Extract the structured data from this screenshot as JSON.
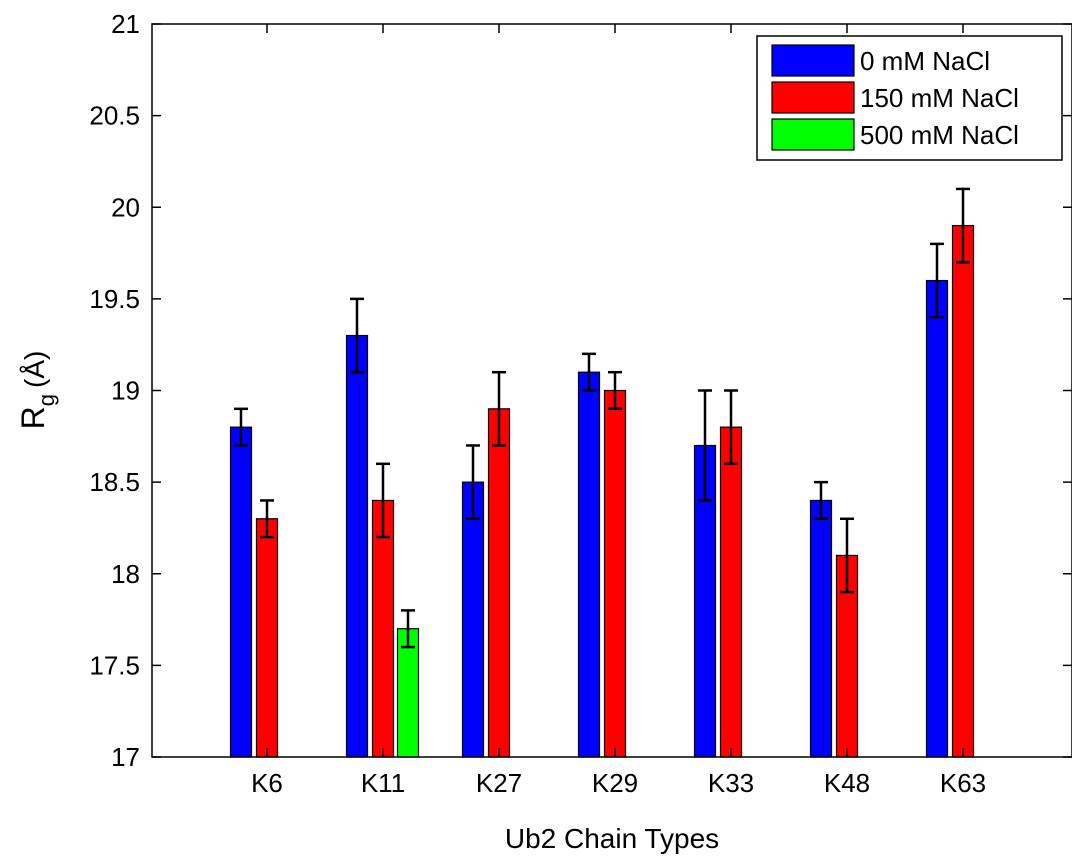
{
  "chart_data": {
    "type": "bar",
    "categories": [
      "K6",
      "K11",
      "K27",
      "K29",
      "K33",
      "K48",
      "K63"
    ],
    "series": [
      {
        "name": "0 mM NaCl",
        "color": "#0000ff",
        "values": [
          18.8,
          19.3,
          18.5,
          19.1,
          18.7,
          18.4,
          19.6
        ],
        "errors": [
          0.1,
          0.2,
          0.2,
          0.1,
          0.3,
          0.1,
          0.2
        ]
      },
      {
        "name": "150 mM NaCl",
        "color": "#ff0000",
        "values": [
          18.3,
          18.4,
          18.9,
          19.0,
          18.8,
          18.1,
          19.9
        ],
        "errors": [
          0.1,
          0.2,
          0.2,
          0.1,
          0.2,
          0.2,
          0.2
        ]
      },
      {
        "name": "500 mM NaCl",
        "color": "#00ff00",
        "values": [
          null,
          17.7,
          null,
          null,
          null,
          null,
          null
        ],
        "errors": [
          null,
          0.1,
          null,
          null,
          null,
          null,
          null
        ]
      }
    ],
    "xlabel": "Ub2 Chain Types",
    "ylabel_main": "R",
    "ylabel_sub": "g",
    "ylabel_unit": "(Å)",
    "ylim": [
      17,
      21
    ],
    "yticks": [
      "17",
      "17.5",
      "18",
      "18.5",
      "19",
      "19.5",
      "20",
      "20.5",
      "21"
    ],
    "legend_position": "top-right",
    "grid": false
  }
}
